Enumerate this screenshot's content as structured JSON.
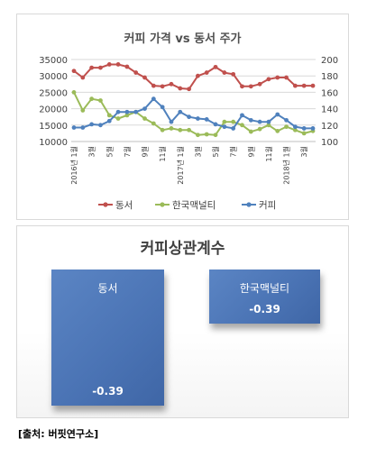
{
  "line_chart": {
    "title": "커피 가격 vs 동서 주가",
    "left_axis_ticks": [
      "35000",
      "30000",
      "25000",
      "20000",
      "15000",
      "10000"
    ],
    "right_axis_ticks": [
      "200",
      "180",
      "160",
      "140",
      "120",
      "100"
    ],
    "x_tick_labels": [
      "2016년 1월",
      "3월",
      "5월",
      "7월",
      "9월",
      "11월",
      "2017년 1월",
      "3월",
      "5월",
      "7월",
      "9월",
      "11월",
      "2018년 1월",
      "3월"
    ],
    "legend": [
      "동서",
      "한국맥널티",
      "커피"
    ],
    "colors": {
      "동서": "#c0504d",
      "한국맥널티": "#9bbb59",
      "커피": "#4f81bd"
    }
  },
  "bar_chart": {
    "title": "커피상관계수",
    "bars": [
      {
        "label": "동서",
        "value_label": "-0.39"
      },
      {
        "label": "한국맥널티",
        "value_label": "-0.39"
      }
    ]
  },
  "source": "[출처: 버핏연구소]",
  "chart_data": [
    {
      "type": "line",
      "title": "커피 가격 vs 동서 주가",
      "x": [
        "2016-01",
        "2016-02",
        "2016-03",
        "2016-04",
        "2016-05",
        "2016-06",
        "2016-07",
        "2016-08",
        "2016-09",
        "2016-10",
        "2016-11",
        "2016-12",
        "2017-01",
        "2017-02",
        "2017-03",
        "2017-04",
        "2017-05",
        "2017-06",
        "2017-07",
        "2017-08",
        "2017-09",
        "2017-10",
        "2017-11",
        "2017-12",
        "2018-01",
        "2018-02",
        "2018-03",
        "2018-04"
      ],
      "y_left_lim": [
        10000,
        35000
      ],
      "y_right_lim": [
        100,
        200
      ],
      "grid": true,
      "legend_position": "bottom",
      "series": [
        {
          "name": "동서",
          "axis": "left",
          "values": [
            31500,
            29500,
            32500,
            32500,
            33500,
            33500,
            32800,
            31000,
            29500,
            27000,
            26800,
            27500,
            26200,
            26000,
            30000,
            31000,
            32700,
            31000,
            30500,
            26800,
            26800,
            27500,
            29000,
            29500,
            29500,
            27000,
            27000,
            27000
          ]
        },
        {
          "name": "한국맥널티",
          "axis": "left",
          "values": [
            25000,
            19500,
            23000,
            22500,
            18000,
            17000,
            18000,
            19000,
            17000,
            15500,
            13500,
            14000,
            13500,
            13500,
            12000,
            12200,
            12000,
            16000,
            16000,
            15000,
            13000,
            13800,
            15000,
            13200,
            14500,
            13500,
            12500,
            13200
          ]
        },
        {
          "name": "커피",
          "axis": "right",
          "values": [
            117,
            117,
            121,
            120,
            125,
            136,
            136,
            136,
            140,
            152,
            142,
            124,
            136,
            130,
            128,
            127,
            121,
            118,
            116,
            132,
            126,
            124,
            124,
            133,
            126,
            118,
            116,
            116
          ]
        }
      ]
    },
    {
      "type": "bar",
      "title": "커피상관계수",
      "categories": [
        "동서",
        "한국맥널티"
      ],
      "values": [
        -0.39,
        -0.39
      ]
    }
  ]
}
